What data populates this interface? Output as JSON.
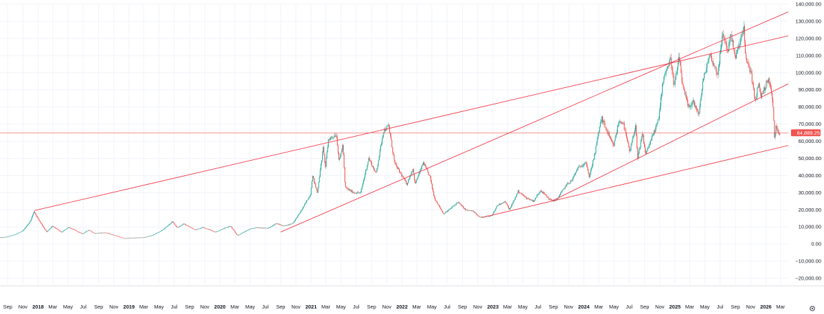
{
  "chart_data": {
    "type": "candlestick",
    "y_axis": {
      "ylim": [
        -25000,
        140000
      ],
      "ticks": [
        "140,000.00",
        "130,000.00",
        "120,000.00",
        "110,000.00",
        "100,000.00",
        "90,000.00",
        "80,000.00",
        "70,000.00",
        "60,000.00",
        "50,000.00",
        "40,000.00",
        "30,000.00",
        "20,000.00",
        "10,000.00",
        "0.00",
        "−10,000.00",
        "−20,000.00"
      ],
      "tick_values": [
        140000,
        130000,
        120000,
        110000,
        100000,
        90000,
        80000,
        70000,
        60000,
        50000,
        40000,
        30000,
        20000,
        10000,
        0,
        -10000,
        -20000
      ]
    },
    "x_axis": {
      "range": [
        "2017-08-01",
        "2026-04-01"
      ],
      "ticks": [
        {
          "label": "Sep",
          "date": "2017-09-01",
          "year": false
        },
        {
          "label": "Nov",
          "date": "2017-11-01",
          "year": false
        },
        {
          "label": "2018",
          "date": "2018-01-01",
          "year": true
        },
        {
          "label": "Mar",
          "date": "2018-03-01",
          "year": false
        },
        {
          "label": "May",
          "date": "2018-05-01",
          "year": false
        },
        {
          "label": "Jul",
          "date": "2018-07-01",
          "year": false
        },
        {
          "label": "Sep",
          "date": "2018-09-01",
          "year": false
        },
        {
          "label": "Nov",
          "date": "2018-11-01",
          "year": false
        },
        {
          "label": "2019",
          "date": "2019-01-01",
          "year": true
        },
        {
          "label": "Mar",
          "date": "2019-03-01",
          "year": false
        },
        {
          "label": "May",
          "date": "2019-05-01",
          "year": false
        },
        {
          "label": "Jul",
          "date": "2019-07-01",
          "year": false
        },
        {
          "label": "Sep",
          "date": "2019-09-01",
          "year": false
        },
        {
          "label": "Nov",
          "date": "2019-11-01",
          "year": false
        },
        {
          "label": "2020",
          "date": "2020-01-01",
          "year": true
        },
        {
          "label": "Mar",
          "date": "2020-03-01",
          "year": false
        },
        {
          "label": "May",
          "date": "2020-05-01",
          "year": false
        },
        {
          "label": "Jul",
          "date": "2020-07-01",
          "year": false
        },
        {
          "label": "Sep",
          "date": "2020-09-01",
          "year": false
        },
        {
          "label": "Nov",
          "date": "2020-11-01",
          "year": false
        },
        {
          "label": "2021",
          "date": "2021-01-01",
          "year": true
        },
        {
          "label": "Mar",
          "date": "2021-03-01",
          "year": false
        },
        {
          "label": "May",
          "date": "2021-05-01",
          "year": false
        },
        {
          "label": "Jul",
          "date": "2021-07-01",
          "year": false
        },
        {
          "label": "Sep",
          "date": "2021-09-01",
          "year": false
        },
        {
          "label": "Nov",
          "date": "2021-11-01",
          "year": false
        },
        {
          "label": "2022",
          "date": "2022-01-01",
          "year": true
        },
        {
          "label": "Mar",
          "date": "2022-03-01",
          "year": false
        },
        {
          "label": "May",
          "date": "2022-05-01",
          "year": false
        },
        {
          "label": "Jul",
          "date": "2022-07-01",
          "year": false
        },
        {
          "label": "Sep",
          "date": "2022-09-01",
          "year": false
        },
        {
          "label": "Nov",
          "date": "2022-11-01",
          "year": false
        },
        {
          "label": "2023",
          "date": "2023-01-01",
          "year": true
        },
        {
          "label": "Mar",
          "date": "2023-03-01",
          "year": false
        },
        {
          "label": "May",
          "date": "2023-05-01",
          "year": false
        },
        {
          "label": "Jul",
          "date": "2023-07-01",
          "year": false
        },
        {
          "label": "Sep",
          "date": "2023-09-01",
          "year": false
        },
        {
          "label": "Nov",
          "date": "2023-11-01",
          "year": false
        },
        {
          "label": "2024",
          "date": "2024-01-01",
          "year": true
        },
        {
          "label": "Mar",
          "date": "2024-03-01",
          "year": false
        },
        {
          "label": "May",
          "date": "2024-05-01",
          "year": false
        },
        {
          "label": "Jul",
          "date": "2024-07-01",
          "year": false
        },
        {
          "label": "Sep",
          "date": "2024-09-01",
          "year": false
        },
        {
          "label": "Nov",
          "date": "2024-11-01",
          "year": false
        },
        {
          "label": "2025",
          "date": "2025-01-01",
          "year": true
        },
        {
          "label": "Mar",
          "date": "2025-03-01",
          "year": false
        },
        {
          "label": "May",
          "date": "2025-05-01",
          "year": false
        },
        {
          "label": "Jul",
          "date": "2025-07-01",
          "year": false
        },
        {
          "label": "Sep",
          "date": "2025-09-01",
          "year": false
        },
        {
          "label": "Nov",
          "date": "2025-11-01",
          "year": false
        },
        {
          "label": "2026",
          "date": "2026-01-01",
          "year": true
        },
        {
          "label": "Mar",
          "date": "2026-03-01",
          "year": false
        }
      ]
    },
    "current_price": {
      "label": "64,889.25",
      "value": 64889.25
    },
    "grid": true,
    "colors": {
      "up": "#26a69a",
      "down": "#ef5350",
      "trendline": "#f23645",
      "price_line": "#ef5350",
      "grid": "#f0f3fa",
      "text": "#131722"
    },
    "price_path": [
      [
        "2017-08-01",
        3800
      ],
      [
        "2017-09-01",
        4200
      ],
      [
        "2017-10-01",
        5500
      ],
      [
        "2017-11-01",
        7500
      ],
      [
        "2017-12-01",
        13000
      ],
      [
        "2017-12-17",
        19000
      ],
      [
        "2018-01-01",
        15000
      ],
      [
        "2018-02-06",
        7000
      ],
      [
        "2018-03-01",
        10500
      ],
      [
        "2018-04-06",
        6800
      ],
      [
        "2018-05-05",
        9800
      ],
      [
        "2018-06-29",
        5900
      ],
      [
        "2018-07-25",
        8200
      ],
      [
        "2018-08-15",
        6300
      ],
      [
        "2018-10-01",
        6600
      ],
      [
        "2018-11-20",
        4400
      ],
      [
        "2018-12-15",
        3300
      ],
      [
        "2019-01-15",
        3600
      ],
      [
        "2019-03-01",
        3800
      ],
      [
        "2019-04-05",
        5000
      ],
      [
        "2019-05-15",
        7900
      ],
      [
        "2019-06-26",
        13000
      ],
      [
        "2019-07-15",
        9500
      ],
      [
        "2019-08-10",
        11800
      ],
      [
        "2019-09-25",
        8200
      ],
      [
        "2019-10-26",
        9800
      ],
      [
        "2019-12-15",
        7000
      ],
      [
        "2020-02-13",
        10500
      ],
      [
        "2020-03-13",
        4900
      ],
      [
        "2020-05-01",
        8800
      ],
      [
        "2020-06-01",
        9500
      ],
      [
        "2020-07-15",
        9200
      ],
      [
        "2020-08-15",
        12000
      ],
      [
        "2020-09-15",
        10500
      ],
      [
        "2020-10-20",
        12000
      ],
      [
        "2020-11-20",
        18500
      ],
      [
        "2020-12-31",
        29000
      ],
      [
        "2021-01-08",
        40000
      ],
      [
        "2021-01-27",
        30000
      ],
      [
        "2021-02-21",
        57000
      ],
      [
        "2021-02-28",
        44000
      ],
      [
        "2021-03-13",
        61000
      ],
      [
        "2021-04-14",
        64000
      ],
      [
        "2021-04-25",
        48000
      ],
      [
        "2021-05-10",
        58000
      ],
      [
        "2021-05-19",
        33000
      ],
      [
        "2021-06-22",
        30000
      ],
      [
        "2021-07-20",
        29800
      ],
      [
        "2021-08-22",
        50000
      ],
      [
        "2021-09-20",
        41000
      ],
      [
        "2021-10-20",
        66000
      ],
      [
        "2021-11-10",
        69000
      ],
      [
        "2021-12-04",
        47000
      ],
      [
        "2022-01-22",
        35000
      ],
      [
        "2022-02-15",
        44000
      ],
      [
        "2022-02-24",
        35000
      ],
      [
        "2022-03-29",
        47500
      ],
      [
        "2022-04-25",
        39000
      ],
      [
        "2022-05-12",
        27000
      ],
      [
        "2022-06-18",
        17600
      ],
      [
        "2022-07-15",
        20500
      ],
      [
        "2022-08-15",
        24500
      ],
      [
        "2022-09-15",
        19800
      ],
      [
        "2022-10-15",
        19100
      ],
      [
        "2022-11-09",
        15700
      ],
      [
        "2022-12-30",
        16500
      ],
      [
        "2023-01-20",
        22600
      ],
      [
        "2023-02-20",
        24800
      ],
      [
        "2023-03-10",
        20000
      ],
      [
        "2023-04-14",
        30800
      ],
      [
        "2023-05-15",
        27000
      ],
      [
        "2023-06-15",
        25000
      ],
      [
        "2023-07-13",
        31500
      ],
      [
        "2023-08-18",
        26000
      ],
      [
        "2023-09-11",
        25000
      ],
      [
        "2023-10-24",
        34500
      ],
      [
        "2023-11-15",
        37000
      ],
      [
        "2023-12-08",
        44000
      ],
      [
        "2024-01-11",
        48000
      ],
      [
        "2024-01-23",
        39000
      ],
      [
        "2024-02-15",
        52000
      ],
      [
        "2024-03-05",
        68000
      ],
      [
        "2024-03-14",
        73500
      ],
      [
        "2024-04-15",
        62000
      ],
      [
        "2024-05-01",
        57000
      ],
      [
        "2024-05-21",
        71000
      ],
      [
        "2024-06-07",
        71500
      ],
      [
        "2024-07-05",
        53500
      ],
      [
        "2024-07-29",
        70000
      ],
      [
        "2024-08-05",
        49000
      ],
      [
        "2024-08-25",
        64500
      ],
      [
        "2024-09-06",
        52500
      ],
      [
        "2024-10-15",
        67000
      ],
      [
        "2024-10-29",
        73000
      ],
      [
        "2024-11-13",
        93000
      ],
      [
        "2024-11-22",
        99500
      ],
      [
        "2024-12-17",
        108000
      ],
      [
        "2024-12-30",
        92000
      ],
      [
        "2025-01-20",
        109000
      ],
      [
        "2025-02-03",
        91000
      ],
      [
        "2025-02-28",
        79000
      ],
      [
        "2025-03-15",
        84000
      ],
      [
        "2025-04-07",
        75000
      ],
      [
        "2025-04-25",
        95000
      ],
      [
        "2025-05-22",
        111000
      ],
      [
        "2025-06-22",
        99000
      ],
      [
        "2025-07-14",
        123000
      ],
      [
        "2025-08-03",
        112000
      ],
      [
        "2025-08-14",
        124000
      ],
      [
        "2025-09-01",
        108000
      ],
      [
        "2025-10-06",
        126000
      ],
      [
        "2025-10-11",
        110000
      ],
      [
        "2025-11-04",
        100000
      ],
      [
        "2025-11-21",
        82000
      ],
      [
        "2025-12-03",
        94000
      ],
      [
        "2025-12-15",
        86000
      ],
      [
        "2026-01-05",
        94000
      ],
      [
        "2026-01-15",
        96000
      ],
      [
        "2026-01-25",
        88000
      ],
      [
        "2026-02-02",
        76000
      ],
      [
        "2026-02-06",
        62000
      ],
      [
        "2026-02-12",
        68000
      ],
      [
        "2026-02-18",
        66500
      ],
      [
        "2026-02-25",
        64889
      ]
    ],
    "trendlines": [
      {
        "start": [
          "2017-12-17",
          19500
        ],
        "end": [
          "2026-04-01",
          121500
        ]
      },
      {
        "start": [
          "2020-09-01",
          7000
        ],
        "end": [
          "2026-04-01",
          135500
        ]
      },
      {
        "start": [
          "2022-11-20",
          15500
        ],
        "end": [
          "2026-04-01",
          57500
        ]
      },
      {
        "start": [
          "2023-09-01",
          25500
        ],
        "end": [
          "2026-04-01",
          93500
        ]
      }
    ]
  }
}
